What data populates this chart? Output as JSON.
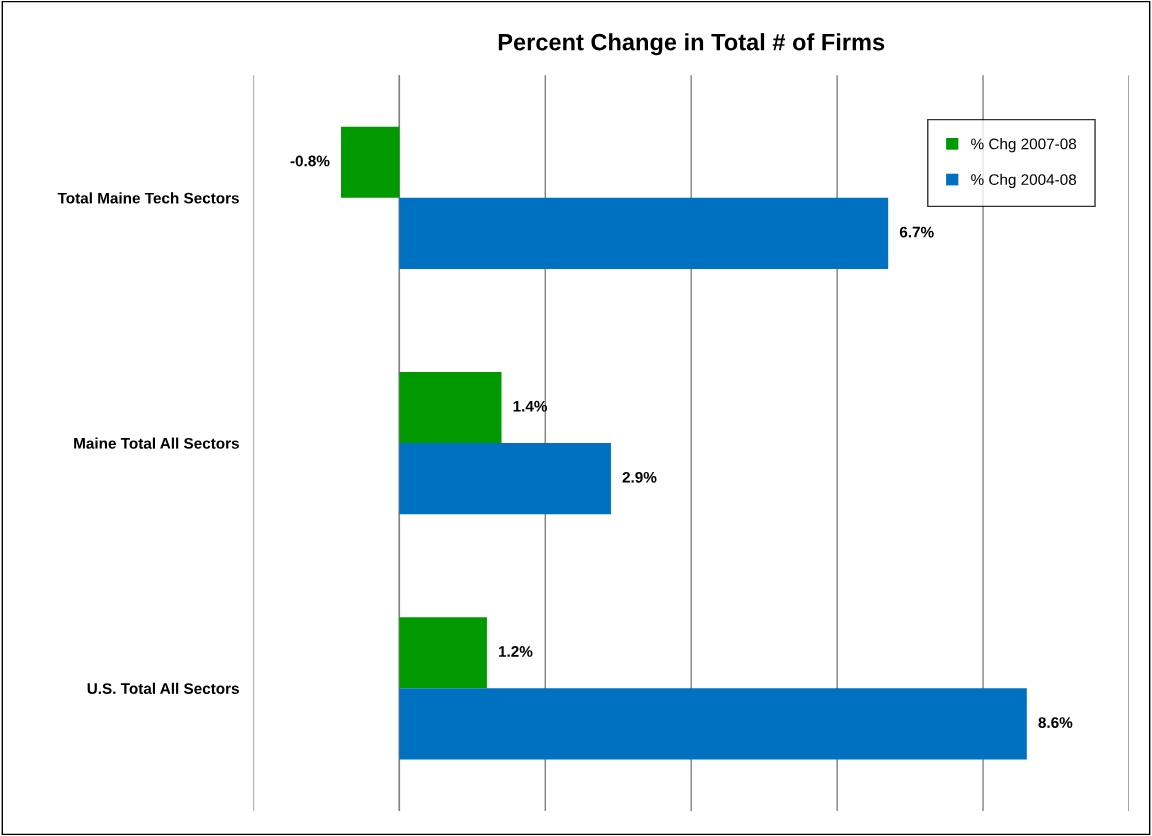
{
  "chart_data": {
    "type": "bar",
    "orientation": "horizontal",
    "title": "Percent Change in Total # of Firms",
    "categories": [
      "Total Maine Tech Sectors",
      "Maine Total All Sectors",
      "U.S. Total All Sectors"
    ],
    "series": [
      {
        "name": "% Chg 2007-08",
        "color": "#009900",
        "values": [
          -0.8,
          1.4,
          1.2
        ],
        "value_labels": [
          "-0.8%",
          "1.4%",
          "1.2%"
        ]
      },
      {
        "name": "% Chg 2004-08",
        "color": "#0070c0",
        "values": [
          6.7,
          2.9,
          8.6
        ],
        "value_labels": [
          "6.7%",
          "2.9%",
          "8.6%"
        ]
      }
    ],
    "xlim": [
      -2,
      10
    ],
    "xticks": [
      {
        "value": -2,
        "label": null
      },
      {
        "value": 0,
        "label": null
      },
      {
        "value": 2,
        "label": null
      },
      {
        "value": 4,
        "label": null
      },
      {
        "value": 6,
        "label": null
      },
      {
        "value": 8,
        "label": null
      },
      {
        "value": 10,
        "label": null
      }
    ],
    "tick_labels": "y",
    "grid": "x",
    "legend": "top right"
  }
}
